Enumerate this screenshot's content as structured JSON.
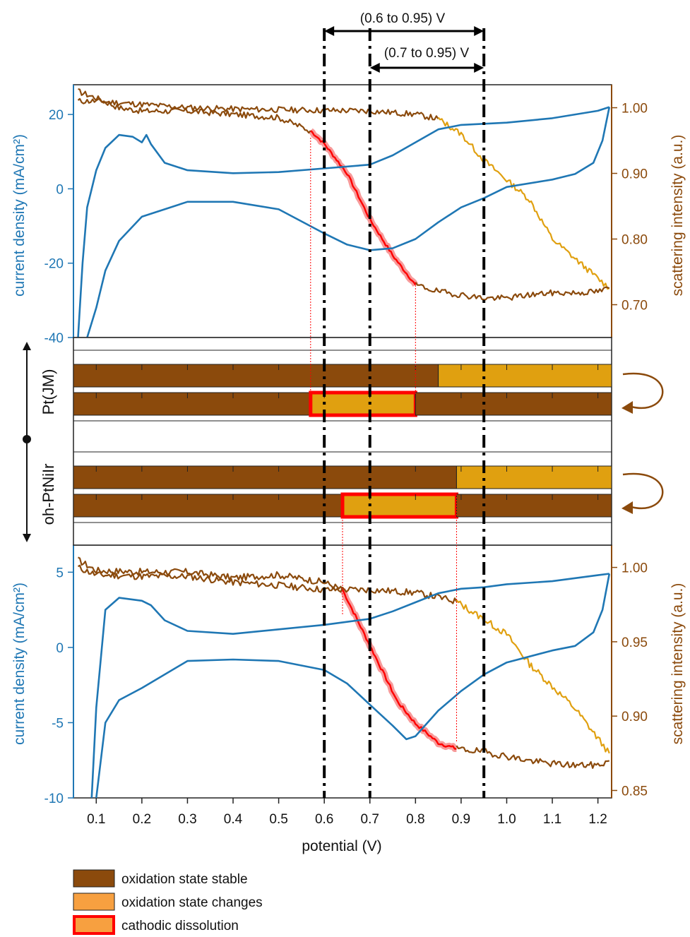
{
  "chart_data": {
    "type": "line",
    "colors": {
      "current": "#1f77b4",
      "stable": "#8b4a0c",
      "changes": "#e0a010",
      "dissolution_edge": "#ff0000",
      "dissolution_fill": "#f79a9a"
    },
    "x_axis": {
      "label": "potential (V)",
      "lim": [
        0.05,
        1.23
      ],
      "ticks": [
        "0.1",
        "0.2",
        "0.3",
        "0.4",
        "0.5",
        "0.6",
        "0.7",
        "0.8",
        "0.9",
        "1.0",
        "1.1",
        "1.2"
      ]
    },
    "range_annotations": [
      {
        "label": "(0.6 to 0.95) V",
        "from": 0.6,
        "to": 0.95
      },
      {
        "label": "(0.7 to 0.95) V",
        "from": 0.7,
        "to": 0.95
      }
    ],
    "vertical_lines": [
      0.6,
      0.7,
      0.95
    ],
    "top_panel": {
      "left_axis": {
        "label": "current density (mA/cm²)",
        "lim": [
          -40,
          28
        ],
        "ticks": [
          "-40",
          "-20",
          "0",
          "20"
        ]
      },
      "right_axis": {
        "label": "scattering intensity (a.u.)",
        "lim": [
          0.65,
          1.035
        ],
        "ticks": [
          "0.70",
          "0.80",
          "0.90",
          "1.00"
        ]
      },
      "cv_anodic": [
        [
          0.06,
          -40
        ],
        [
          0.07,
          -20
        ],
        [
          0.08,
          -5
        ],
        [
          0.1,
          5
        ],
        [
          0.12,
          11
        ],
        [
          0.15,
          14.5
        ],
        [
          0.18,
          14
        ],
        [
          0.2,
          12.5
        ],
        [
          0.21,
          14.5
        ],
        [
          0.22,
          12
        ],
        [
          0.25,
          7
        ],
        [
          0.3,
          5
        ],
        [
          0.4,
          4.2
        ],
        [
          0.5,
          4.5
        ],
        [
          0.6,
          5.5
        ],
        [
          0.7,
          6.5
        ],
        [
          0.75,
          9
        ],
        [
          0.8,
          12.5
        ],
        [
          0.85,
          16
        ],
        [
          0.9,
          17.2
        ],
        [
          0.95,
          17.5
        ],
        [
          1.0,
          17.8
        ],
        [
          1.1,
          19
        ],
        [
          1.2,
          21
        ],
        [
          1.225,
          22
        ]
      ],
      "cv_cathodic": [
        [
          1.225,
          22
        ],
        [
          1.21,
          13
        ],
        [
          1.19,
          7
        ],
        [
          1.15,
          4
        ],
        [
          1.1,
          2.5
        ],
        [
          1.0,
          0.5
        ],
        [
          0.95,
          -2.5
        ],
        [
          0.9,
          -5
        ],
        [
          0.85,
          -9
        ],
        [
          0.8,
          -13.5
        ],
        [
          0.75,
          -16
        ],
        [
          0.7,
          -16.5
        ],
        [
          0.65,
          -15
        ],
        [
          0.6,
          -12
        ],
        [
          0.5,
          -5.5
        ],
        [
          0.4,
          -3.5
        ],
        [
          0.3,
          -3.5
        ],
        [
          0.2,
          -7.5
        ],
        [
          0.15,
          -14
        ],
        [
          0.12,
          -22
        ],
        [
          0.1,
          -32
        ],
        [
          0.08,
          -40
        ]
      ],
      "scatter_anodic_stable": [
        [
          0.06,
          1.01
        ],
        [
          0.1,
          1.01
        ],
        [
          0.2,
          1.005
        ],
        [
          0.3,
          1.0
        ],
        [
          0.4,
          0.998
        ],
        [
          0.5,
          0.997
        ],
        [
          0.6,
          0.996
        ],
        [
          0.7,
          0.995
        ],
        [
          0.8,
          0.99
        ],
        [
          0.85,
          0.983
        ]
      ],
      "scatter_anodic_change": [
        [
          0.85,
          0.983
        ],
        [
          0.9,
          0.96
        ],
        [
          0.95,
          0.92
        ],
        [
          1.0,
          0.89
        ],
        [
          1.05,
          0.86
        ],
        [
          1.1,
          0.8
        ],
        [
          1.15,
          0.77
        ],
        [
          1.2,
          0.74
        ],
        [
          1.225,
          0.725
        ]
      ],
      "scatter_cathodic_stable_high": [
        [
          0.06,
          1.025
        ],
        [
          0.08,
          1.02
        ],
        [
          0.1,
          1.015
        ],
        [
          0.15,
          1.0
        ],
        [
          0.2,
          0.995
        ],
        [
          0.3,
          0.995
        ],
        [
          0.4,
          0.99
        ],
        [
          0.5,
          0.985
        ],
        [
          0.57,
          0.965
        ]
      ],
      "scatter_cathodic_dissolution": [
        [
          0.57,
          0.965
        ],
        [
          0.6,
          0.945
        ],
        [
          0.65,
          0.9
        ],
        [
          0.7,
          0.83
        ],
        [
          0.75,
          0.775
        ],
        [
          0.8,
          0.73
        ]
      ],
      "scatter_cathodic_stable_low": [
        [
          0.8,
          0.73
        ],
        [
          0.85,
          0.72
        ],
        [
          0.9,
          0.715
        ],
        [
          0.95,
          0.71
        ],
        [
          1.0,
          0.71
        ],
        [
          1.05,
          0.715
        ],
        [
          1.1,
          0.718
        ],
        [
          1.15,
          0.718
        ],
        [
          1.2,
          0.72
        ],
        [
          1.225,
          0.725
        ]
      ],
      "dissolution_band": [
        0.57,
        0.8
      ]
    },
    "bottom_panel": {
      "left_axis": {
        "label": "current density (mA/cm²)",
        "lim": [
          -10,
          6.8
        ],
        "ticks": [
          "-10",
          "-5",
          "0",
          "5"
        ]
      },
      "right_axis": {
        "label": "scattering intensity (a.u.)",
        "lim": [
          0.845,
          1.015
        ],
        "ticks": [
          "0.85",
          "0.90",
          "0.95",
          "1.00"
        ]
      },
      "cv_anodic": [
        [
          0.09,
          -10
        ],
        [
          0.1,
          -4
        ],
        [
          0.12,
          2.5
        ],
        [
          0.15,
          3.3
        ],
        [
          0.2,
          3.1
        ],
        [
          0.22,
          2.8
        ],
        [
          0.25,
          1.8
        ],
        [
          0.3,
          1.1
        ],
        [
          0.4,
          0.9
        ],
        [
          0.5,
          1.2
        ],
        [
          0.6,
          1.5
        ],
        [
          0.7,
          1.9
        ],
        [
          0.75,
          2.4
        ],
        [
          0.8,
          3.0
        ],
        [
          0.85,
          3.6
        ],
        [
          0.9,
          3.9
        ],
        [
          0.95,
          4.0
        ],
        [
          1.0,
          4.2
        ],
        [
          1.1,
          4.4
        ],
        [
          1.2,
          4.8
        ],
        [
          1.225,
          4.9
        ]
      ],
      "cv_cathodic": [
        [
          1.225,
          4.9
        ],
        [
          1.21,
          2.5
        ],
        [
          1.19,
          1.0
        ],
        [
          1.15,
          0.1
        ],
        [
          1.1,
          -0.2
        ],
        [
          1.0,
          -1.0
        ],
        [
          0.95,
          -1.8
        ],
        [
          0.9,
          -2.9
        ],
        [
          0.85,
          -4.2
        ],
        [
          0.8,
          -5.9
        ],
        [
          0.78,
          -6.1
        ],
        [
          0.75,
          -5.2
        ],
        [
          0.7,
          -3.8
        ],
        [
          0.65,
          -2.4
        ],
        [
          0.6,
          -1.5
        ],
        [
          0.5,
          -0.9
        ],
        [
          0.4,
          -0.8
        ],
        [
          0.3,
          -0.9
        ],
        [
          0.2,
          -2.7
        ],
        [
          0.15,
          -3.5
        ],
        [
          0.12,
          -5
        ],
        [
          0.1,
          -10
        ]
      ],
      "scatter_anodic_stable": [
        [
          0.06,
          1.0
        ],
        [
          0.1,
          0.995
        ],
        [
          0.2,
          0.994
        ],
        [
          0.3,
          0.994
        ],
        [
          0.4,
          0.99
        ],
        [
          0.5,
          0.988
        ],
        [
          0.6,
          0.985
        ],
        [
          0.7,
          0.985
        ],
        [
          0.8,
          0.983
        ],
        [
          0.85,
          0.98
        ],
        [
          0.89,
          0.977
        ]
      ],
      "scatter_anodic_change": [
        [
          0.89,
          0.977
        ],
        [
          0.95,
          0.965
        ],
        [
          1.0,
          0.955
        ],
        [
          1.05,
          0.935
        ],
        [
          1.1,
          0.92
        ],
        [
          1.15,
          0.905
        ],
        [
          1.2,
          0.885
        ],
        [
          1.225,
          0.875
        ]
      ],
      "scatter_cathodic_stable_high": [
        [
          0.06,
          1.005
        ],
        [
          0.1,
          0.998
        ],
        [
          0.2,
          0.997
        ],
        [
          0.3,
          0.997
        ],
        [
          0.4,
          0.993
        ],
        [
          0.5,
          0.995
        ],
        [
          0.6,
          0.99
        ],
        [
          0.64,
          0.985
        ]
      ],
      "scatter_cathodic_dissolution": [
        [
          0.64,
          0.985
        ],
        [
          0.68,
          0.96
        ],
        [
          0.72,
          0.935
        ],
        [
          0.76,
          0.91
        ],
        [
          0.8,
          0.895
        ],
        [
          0.85,
          0.882
        ],
        [
          0.89,
          0.878
        ]
      ],
      "scatter_cathodic_stable_low": [
        [
          0.89,
          0.878
        ],
        [
          0.95,
          0.876
        ],
        [
          1.0,
          0.873
        ],
        [
          1.05,
          0.87
        ],
        [
          1.1,
          0.868
        ],
        [
          1.15,
          0.867
        ],
        [
          1.2,
          0.867
        ],
        [
          1.225,
          0.87
        ]
      ],
      "dissolution_band": [
        0.64,
        0.89
      ]
    },
    "middle_panel": {
      "samples": [
        "Pt(JM)",
        "oh-PtNiIr"
      ],
      "bars": [
        {
          "sample": "Pt(JM)",
          "sweep": "anodic",
          "segments": [
            {
              "from": 0.05,
              "to": 0.85,
              "state": "stable"
            },
            {
              "from": 0.85,
              "to": 1.23,
              "state": "changes"
            }
          ]
        },
        {
          "sample": "Pt(JM)",
          "sweep": "cathodic",
          "segments": [
            {
              "from": 0.05,
              "to": 0.57,
              "state": "stable"
            },
            {
              "from": 0.57,
              "to": 0.8,
              "state": "dissolution"
            },
            {
              "from": 0.8,
              "to": 1.23,
              "state": "stable"
            }
          ]
        },
        {
          "sample": "oh-PtNiIr",
          "sweep": "anodic",
          "segments": [
            {
              "from": 0.05,
              "to": 0.89,
              "state": "stable"
            },
            {
              "from": 0.89,
              "to": 1.23,
              "state": "changes"
            }
          ]
        },
        {
          "sample": "oh-PtNiIr",
          "sweep": "cathodic",
          "segments": [
            {
              "from": 0.05,
              "to": 0.64,
              "state": "stable"
            },
            {
              "from": 0.64,
              "to": 0.89,
              "state": "dissolution"
            },
            {
              "from": 0.89,
              "to": 1.23,
              "state": "stable"
            }
          ]
        }
      ]
    },
    "legend": {
      "placement": "bottom-left",
      "items": [
        {
          "key": "stable",
          "label": "oxidation state stable"
        },
        {
          "key": "changes",
          "label": "oxidation state changes"
        },
        {
          "key": "dissolution",
          "label": "cathodic dissolution"
        }
      ]
    }
  }
}
